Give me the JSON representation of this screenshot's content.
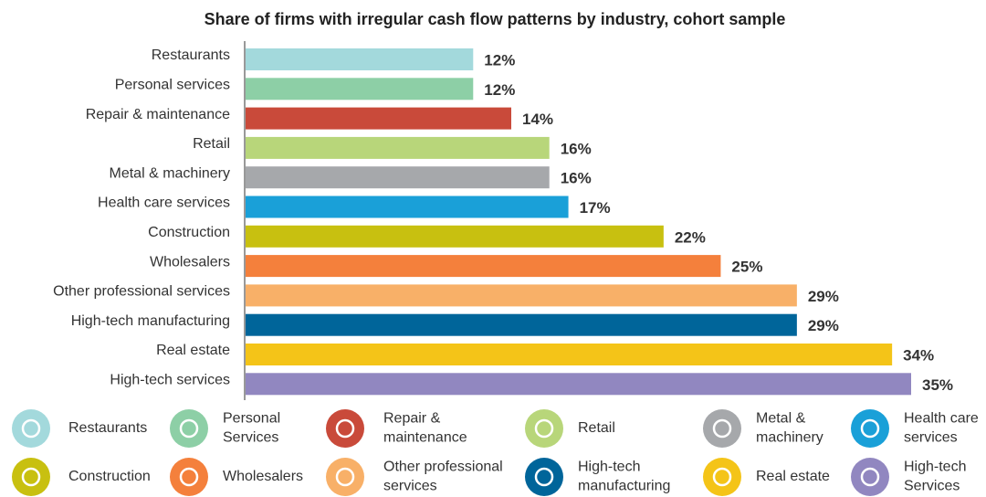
{
  "chart_data": {
    "type": "bar",
    "orientation": "horizontal",
    "title": "Share of firms with irregular cash flow patterns by industry, cohort sample",
    "categories": [
      "Restaurants",
      "Personal services",
      "Repair & maintenance",
      "Retail",
      "Metal & machinery",
      "Health care services",
      "Construction",
      "Wholesalers",
      "Other professional services",
      "High-tech manufacturing",
      "Real estate",
      "High-tech services"
    ],
    "values": [
      12,
      12,
      14,
      16,
      16,
      17,
      22,
      25,
      29,
      29,
      34,
      35
    ],
    "value_labels": [
      "12%",
      "12%",
      "14%",
      "16%",
      "16%",
      "17%",
      "22%",
      "25%",
      "29%",
      "29%",
      "34%",
      "35%"
    ],
    "colors": [
      "#a3d9dc",
      "#8dcfa6",
      "#c94a3a",
      "#b8d67a",
      "#a6a8ab",
      "#1aa0d8",
      "#c8c010",
      "#f4803c",
      "#f8b068",
      "#00659a",
      "#f4c418",
      "#9187c0"
    ],
    "label_colors": [
      "#5f8a8b",
      "#5f8a8b",
      "#8b1a1a",
      "#7a8a2a",
      "#555555",
      "#1a6fa8",
      "#8a8a10",
      "#c0501a",
      "#c0501a",
      "#0a4a7a",
      "#8a7a20",
      "#555555"
    ],
    "legend": [
      {
        "lines": [
          "Restaurants"
        ],
        "color": "#a3d9dc"
      },
      {
        "lines": [
          "Personal",
          "Services"
        ],
        "color": "#8dcfa6"
      },
      {
        "lines": [
          "Repair &",
          "maintenance"
        ],
        "color": "#c94a3a"
      },
      {
        "lines": [
          "Retail"
        ],
        "color": "#b8d67a"
      },
      {
        "lines": [
          "Metal &",
          "machinery"
        ],
        "color": "#a6a8ab"
      },
      {
        "lines": [
          "Health care",
          "services"
        ],
        "color": "#1aa0d8"
      },
      {
        "lines": [
          "Construction"
        ],
        "color": "#c8c010"
      },
      {
        "lines": [
          "Wholesalers"
        ],
        "color": "#f4803c"
      },
      {
        "lines": [
          "Other professional",
          "services"
        ],
        "color": "#f8b068"
      },
      {
        "lines": [
          "High-tech",
          "manufacturing"
        ],
        "color": "#00659a"
      },
      {
        "lines": [
          "Real estate"
        ],
        "color": "#f4c418"
      },
      {
        "lines": [
          "High-tech",
          "Services"
        ],
        "color": "#9187c0"
      }
    ]
  }
}
